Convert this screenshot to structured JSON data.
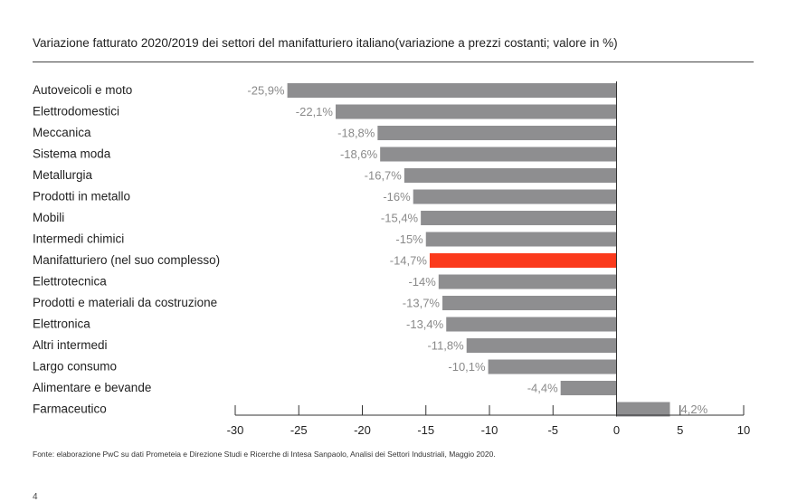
{
  "page_number": "4",
  "source": "Fonte: elaborazione PwC su dati Prometeia e Direzione Studi e Ricerche di Intesa Sanpaolo, Analisi dei Settori Industriali, Maggio 2020.",
  "colors": {
    "bar": "#8e8e90",
    "highlight": "#fb3a1c",
    "axis": "#333333"
  },
  "chart_data": {
    "type": "bar",
    "orientation": "horizontal",
    "title": "Variazione fatturato 2020/2019 dei settori del manifatturiero italiano(variazione a prezzi costanti; valore in %)",
    "categories": [
      "Autoveicoli e moto",
      "Elettrodomestici",
      "Meccanica",
      "Sistema moda",
      "Metallurgia",
      "Prodotti in metallo",
      "Mobili",
      "Intermedi chimici",
      "Manifatturiero (nel suo complesso)",
      "Elettrotecnica",
      "Prodotti e materiali da costruzione",
      "Elettronica",
      "Altri intermedi",
      "Largo consumo",
      "Alimentare e bevande",
      "Farmaceutico"
    ],
    "values": [
      -25.9,
      -22.1,
      -18.8,
      -18.6,
      -16.7,
      -16,
      -15.4,
      -15,
      -14.7,
      -14,
      -13.7,
      -13.4,
      -11.8,
      -10.1,
      -4.4,
      4.2
    ],
    "data_labels": [
      "-25,9%",
      "-22,1%",
      "-18,8%",
      "-18,6%",
      "-16,7%",
      "-16%",
      "-15,4%",
      "-15%",
      "-14,7%",
      "-14%",
      "-13,7%",
      "-13,4%",
      "-11,8%",
      "-10,1%",
      "-4,4%",
      "4,2%"
    ],
    "highlight": "Manifatturiero (nel suo complesso)",
    "xlim": [
      -30,
      10
    ],
    "xticks": [
      -30,
      -25,
      -20,
      -15,
      -10,
      -5,
      0,
      5,
      10
    ],
    "xtick_labels": [
      "-30",
      "-25",
      "-20",
      "-15",
      "-10",
      "-5",
      "0",
      "5",
      "10"
    ],
    "xlabel": "",
    "ylabel": "",
    "grid": false,
    "legend": "none"
  }
}
